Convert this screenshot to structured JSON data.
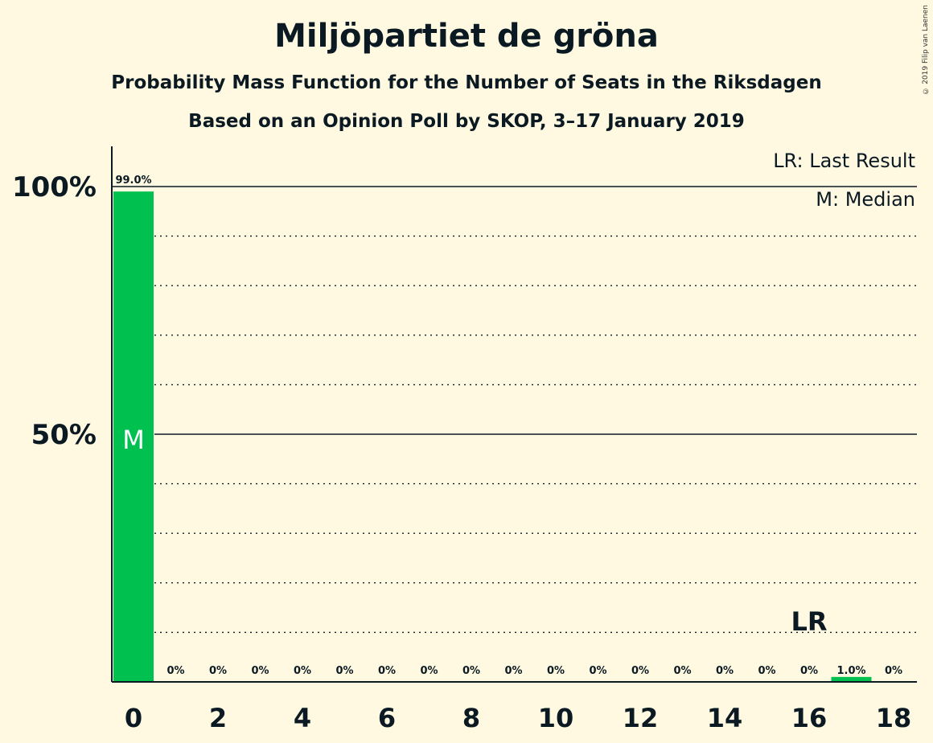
{
  "title": "Miljöpartiet de gröna",
  "subtitle": "Probability Mass Function for the Number of Seats in the Riksdagen",
  "subtitle2": "Based on an Opinion Poll by SKOP, 3–17 January 2019",
  "copyright": "© 2019 Filip van Laenen",
  "colors": {
    "bar": "#00C050",
    "background": "#FFF9E2",
    "text": "#0b1a22"
  },
  "chart_data": {
    "type": "bar",
    "title": "Miljöpartiet de gröna",
    "x": [
      0,
      1,
      2,
      3,
      4,
      5,
      6,
      7,
      8,
      9,
      10,
      11,
      12,
      13,
      14,
      15,
      16,
      17,
      18
    ],
    "values": [
      99.0,
      0,
      0,
      0,
      0,
      0,
      0,
      0,
      0,
      0,
      0,
      0,
      0,
      0,
      0,
      0,
      0,
      1.0,
      0
    ],
    "value_labels": [
      "99.0%",
      "0%",
      "0%",
      "0%",
      "0%",
      "0%",
      "0%",
      "0%",
      "0%",
      "0%",
      "0%",
      "0%",
      "0%",
      "0%",
      "0%",
      "0%",
      "0%",
      "1.0%",
      "0%"
    ],
    "x_ticks": [
      "0",
      "2",
      "4",
      "6",
      "8",
      "10",
      "12",
      "14",
      "16",
      "18"
    ],
    "y_ticks": [
      {
        "value": 50,
        "label": "50%"
      },
      {
        "value": 100,
        "label": "100%"
      }
    ],
    "ylim": [
      0,
      100
    ],
    "grid": "dotted every 10%",
    "median_seat": 0,
    "median_label": "M",
    "last_result_seat": 16,
    "last_result_label": "LR",
    "legend": [
      "LR: Last Result",
      "M: Median"
    ],
    "legend_position": "top-right"
  }
}
